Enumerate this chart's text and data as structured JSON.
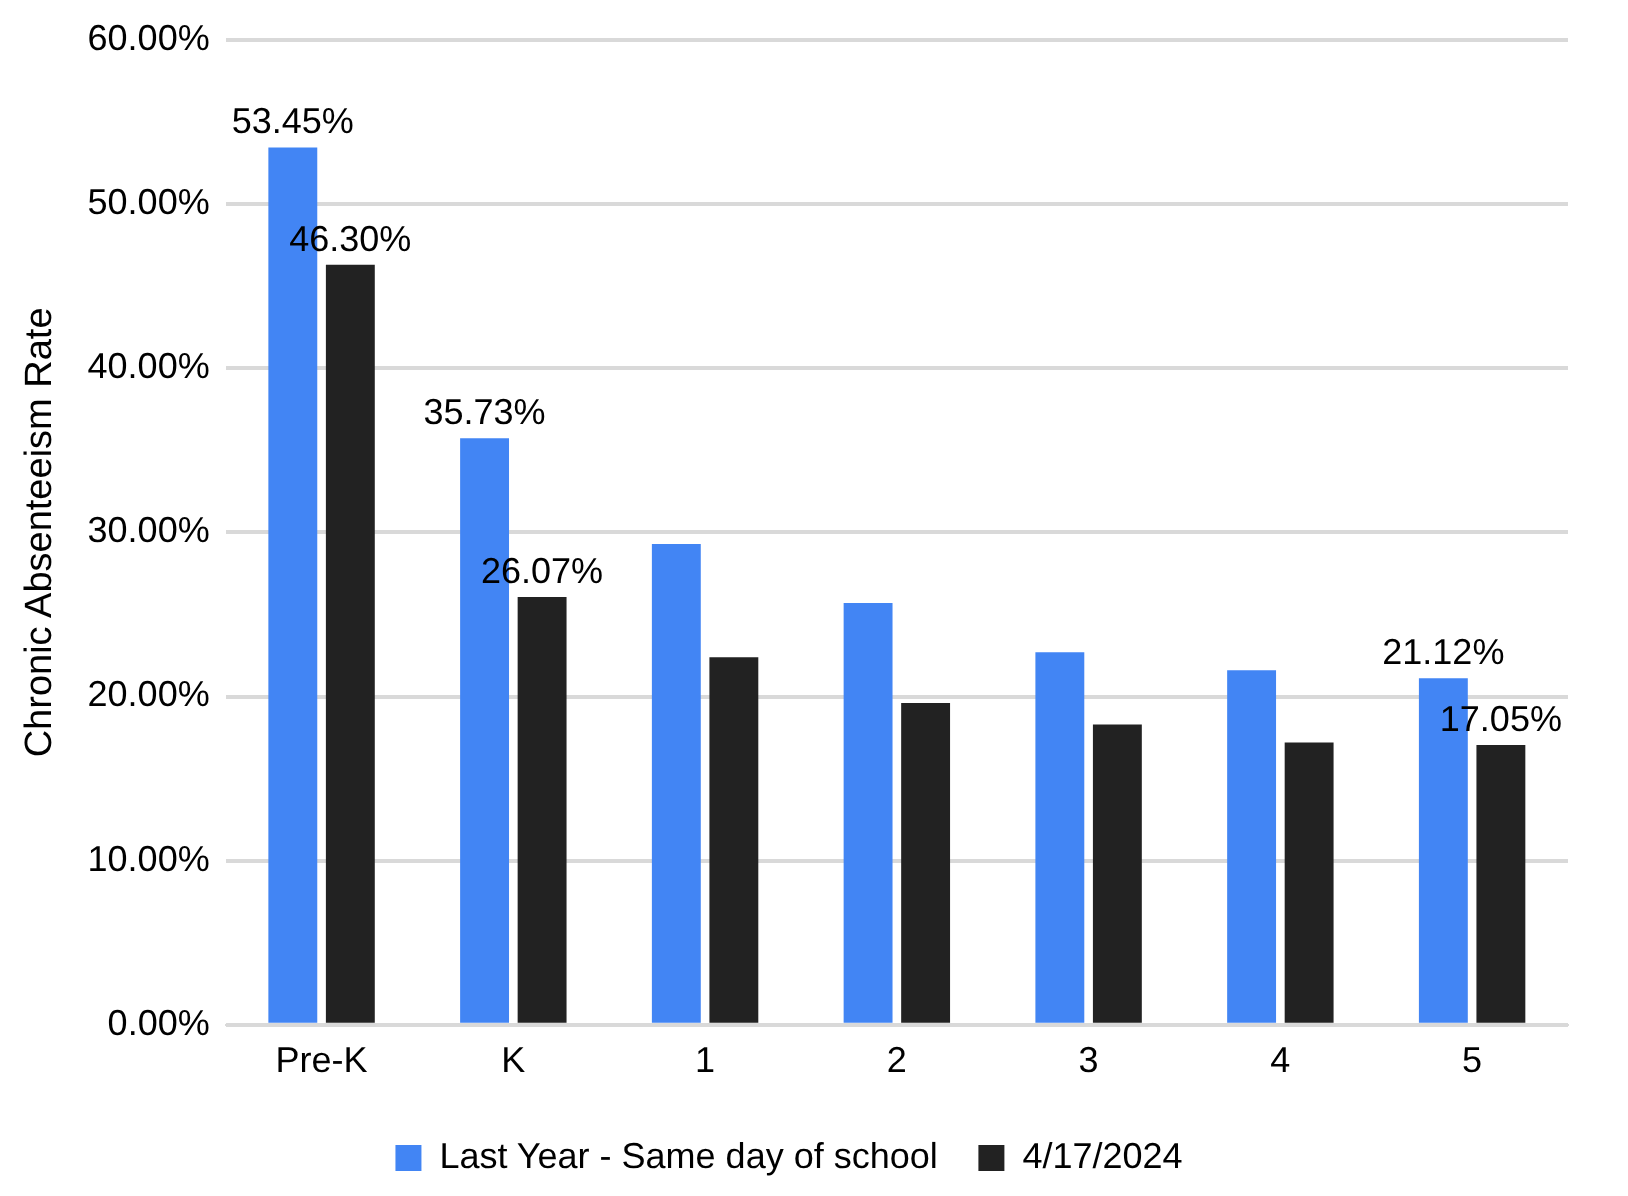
{
  "chart_data": {
    "type": "bar",
    "ylabel": "Chronic Absenteeism Rate",
    "categories": [
      "Pre-K",
      "K",
      "1",
      "2",
      "3",
      "4",
      "5"
    ],
    "series": [
      {
        "name": "Last Year - Same day of school",
        "color": "#4285f4",
        "values": [
          53.45,
          35.73,
          29.3,
          25.7,
          22.7,
          21.6,
          21.12
        ],
        "value_labels": [
          "53.45%",
          "35.73%",
          null,
          null,
          null,
          null,
          "21.12%"
        ]
      },
      {
        "name": "4/17/2024",
        "color": "#222222",
        "values": [
          46.3,
          26.07,
          22.4,
          19.6,
          18.3,
          17.2,
          17.05
        ],
        "value_labels": [
          "46.30%",
          "26.07%",
          null,
          null,
          null,
          null,
          "17.05%"
        ]
      }
    ],
    "ylim": [
      0,
      60
    ],
    "yticks": [
      {
        "value": 0,
        "label": "0.00%"
      },
      {
        "value": 10,
        "label": "10.00%"
      },
      {
        "value": 20,
        "label": "20.00%"
      },
      {
        "value": 30,
        "label": "30.00%"
      },
      {
        "value": 40,
        "label": "40.00%"
      },
      {
        "value": 50,
        "label": "50.00%"
      },
      {
        "value": 60,
        "label": "60.00%"
      }
    ],
    "grid": "y",
    "legend": "bottom"
  }
}
